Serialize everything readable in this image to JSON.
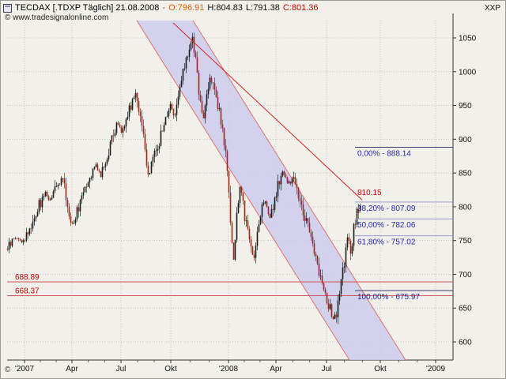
{
  "header": {
    "title": "TECDAX [.TDXP  Täglich] 21.08.2008",
    "dash": "-",
    "open": "O:796.91",
    "high": "H:804.83",
    "low": "L:791.38",
    "close": "C:801.36",
    "watermark": "© www.tradesignalonline.com",
    "axis_header": "XXP",
    "copyright": "©"
  },
  "colors": {
    "open_text": "#e06000",
    "close_text": "#cc0000",
    "support_line": "#cc5555",
    "support_text": "#cc0000",
    "fib_line": "#9b9bd0",
    "fib_line_emph": "#3d3d73",
    "fib_text": "#2929a8",
    "channel_fill": "rgba(203,203,238,0.8)",
    "channel_edge": "#e07070",
    "trend_red": "#d42222",
    "candle_up": "#1b1b1b",
    "candle_down": "#c41414",
    "grid": "#c6c6be",
    "axis": "#333333"
  },
  "chart_data": {
    "type": "candlestick",
    "title": "TECDAX [.TDXP Täglich]",
    "last_date": "21.08.2008",
    "last_ohlc": {
      "open": 796.91,
      "high": 804.83,
      "low": 791.38,
      "close": 801.36
    },
    "ylim": [
      573,
      1076
    ],
    "y_ticks": [
      600,
      650,
      700,
      750,
      800,
      850,
      900,
      950,
      1000,
      1050
    ],
    "x_ticks": [
      "'2007",
      "Apr",
      "Jul",
      "Okt",
      "'2008",
      "Apr",
      "Jul",
      "Okt",
      "'2009"
    ],
    "grid": "dotted",
    "fib_levels": [
      {
        "label": "0,00% - 888.14",
        "value": 888.14,
        "emph": true
      },
      {
        "label": "38,20% - 807.09",
        "value": 807.09,
        "emph": false
      },
      {
        "label": "50,00% - 782.06",
        "value": 782.06,
        "emph": false
      },
      {
        "label": "61,80% - 757.02",
        "value": 757.02,
        "emph": false
      },
      {
        "label": "100,00% - 675.97",
        "value": 675.97,
        "emph": true
      }
    ],
    "support_lines": [
      {
        "label": "688.89",
        "value": 688.89
      },
      {
        "label": "668.37",
        "value": 668.37
      }
    ],
    "trendline_label": "810.15",
    "trendline_value": 810.15,
    "price_path": [
      [
        8,
        738
      ],
      [
        18,
        755
      ],
      [
        28,
        748
      ],
      [
        38,
        772
      ],
      [
        48,
        800
      ],
      [
        56,
        822
      ],
      [
        62,
        808
      ],
      [
        70,
        828
      ],
      [
        78,
        840
      ],
      [
        84,
        806
      ],
      [
        90,
        772
      ],
      [
        96,
        790
      ],
      [
        104,
        828
      ],
      [
        112,
        846
      ],
      [
        120,
        862
      ],
      [
        127,
        846
      ],
      [
        134,
        874
      ],
      [
        141,
        900
      ],
      [
        148,
        924
      ],
      [
        154,
        912
      ],
      [
        160,
        938
      ],
      [
        166,
        958
      ],
      [
        171,
        968
      ],
      [
        176,
        940
      ],
      [
        181,
        900
      ],
      [
        186,
        836
      ],
      [
        191,
        868
      ],
      [
        197,
        888
      ],
      [
        203,
        906
      ],
      [
        209,
        934
      ],
      [
        215,
        952
      ],
      [
        220,
        936
      ],
      [
        226,
        968
      ],
      [
        232,
        1006
      ],
      [
        238,
        1036
      ],
      [
        243,
        1046
      ],
      [
        248,
        1002
      ],
      [
        252,
        956
      ],
      [
        256,
        926
      ],
      [
        260,
        962
      ],
      [
        264,
        996
      ],
      [
        268,
        978
      ],
      [
        272,
        958
      ],
      [
        276,
        946
      ],
      [
        280,
        920
      ],
      [
        284,
        880
      ],
      [
        288,
        826
      ],
      [
        291,
        762
      ],
      [
        294,
        716
      ],
      [
        297,
        752
      ],
      [
        300,
        812
      ],
      [
        304,
        828
      ],
      [
        308,
        790
      ],
      [
        312,
        764
      ],
      [
        316,
        742
      ],
      [
        320,
        722
      ],
      [
        325,
        768
      ],
      [
        330,
        802
      ],
      [
        335,
        808
      ],
      [
        340,
        784
      ],
      [
        345,
        798
      ],
      [
        350,
        828
      ],
      [
        355,
        852
      ],
      [
        360,
        844
      ],
      [
        365,
        834
      ],
      [
        370,
        846
      ],
      [
        375,
        822
      ],
      [
        380,
        798
      ],
      [
        385,
        786
      ],
      [
        390,
        764
      ],
      [
        395,
        746
      ],
      [
        400,
        714
      ],
      [
        405,
        698
      ],
      [
        410,
        674
      ],
      [
        415,
        652
      ],
      [
        420,
        636
      ],
      [
        424,
        630
      ],
      [
        428,
        666
      ],
      [
        432,
        698
      ],
      [
        436,
        728
      ],
      [
        440,
        756
      ],
      [
        443,
        736
      ],
      [
        446,
        762
      ],
      [
        449,
        784
      ],
      [
        452,
        797
      ],
      [
        454,
        801
      ]
    ]
  }
}
